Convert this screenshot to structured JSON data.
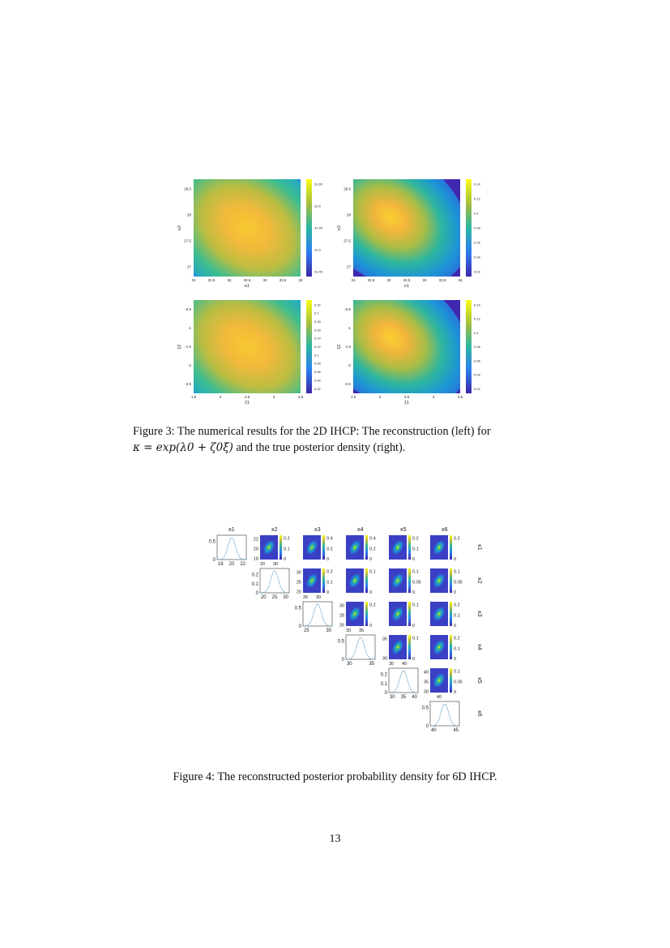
{
  "figure3": {
    "caption_prefix": "Figure 3:",
    "caption_line1_text": "The numerical results for the 2D IHCP: The reconstruction (left) for",
    "caption_line2_math": "κ = exp(λ0 + ζ0ξ)",
    "caption_line2_text": " and the true posterior density (right).",
    "panels": [
      {
        "xticks": [
          "31",
          "31.5",
          "32",
          "32.5",
          "33",
          "33.5",
          "34"
        ],
        "yticks": [
          "28.5",
          "28",
          "27.5",
          "27"
        ],
        "xlabel": "κ1",
        "ylabel": "κ2",
        "cbar_ticks": [
          "31.65",
          "31.6",
          "31.55",
          "31.5",
          "31.45"
        ]
      },
      {
        "xticks": [
          "31",
          "31.5",
          "32",
          "32.5",
          "33",
          "33.5",
          "34"
        ],
        "yticks": [
          "28.5",
          "28",
          "27.5",
          "27"
        ],
        "xlabel": "κ1",
        "ylabel": "κ2",
        "cbar_ticks": [
          "0.14",
          "0.12",
          "0.1",
          "0.08",
          "0.06",
          "0.04",
          "0.02"
        ]
      },
      {
        "xticks": [
          "1.5",
          "2",
          "2.5",
          "3",
          "3.5"
        ],
        "yticks": [
          "-0.5",
          "-1",
          "-1.5",
          "-2",
          "-2.5"
        ],
        "xlabel": "ξ1",
        "ylabel": "ξ2",
        "cbar_ticks": [
          "0.22",
          "0.2",
          "0.18",
          "0.16",
          "0.14",
          "0.12",
          "0.1",
          "0.08",
          "0.06",
          "0.04",
          "0.02"
        ]
      },
      {
        "xticks": [
          "1.5",
          "2",
          "2.5",
          "3",
          "3.5"
        ],
        "yticks": [
          "-0.5",
          "-1",
          "-1.5",
          "-2",
          "-2.5"
        ],
        "xlabel": "ξ1",
        "ylabel": "ξ2",
        "cbar_ticks": [
          "0.14",
          "0.12",
          "0.1",
          "0.08",
          "0.06",
          "0.04",
          "0.02"
        ]
      }
    ]
  },
  "figure4": {
    "caption": "Figure 4: The reconstructed posterior probability density for 6D IHCP.",
    "col_labels": [
      "κ1",
      "κ2",
      "κ3",
      "κ4",
      "κ5",
      "κ6"
    ],
    "row_labels": [
      "κ1",
      "κ2",
      "κ3",
      "κ4",
      "κ5",
      "κ6"
    ],
    "diagonal": [
      {
        "xticks": [
          "18",
          "20",
          "22"
        ],
        "yticks": [
          "0.5",
          "0"
        ]
      },
      {
        "xticks": [
          "20",
          "25",
          "30"
        ],
        "yticks": [
          "0.2",
          "0.1",
          "0"
        ]
      },
      {
        "xticks": [
          "25",
          "30"
        ],
        "yticks": [
          "0.5",
          "0"
        ]
      },
      {
        "xticks": [
          "30",
          "35"
        ],
        "yticks": [
          "0.5",
          "0"
        ]
      },
      {
        "xticks": [
          "30",
          "35",
          "40"
        ],
        "yticks": [
          "0.2",
          "0.1",
          "0"
        ]
      },
      {
        "xticks": [
          "40",
          "45"
        ],
        "yticks": [
          "0.5",
          "0"
        ]
      }
    ],
    "offdiag_cbars": [
      [
        "0.2",
        "0.1",
        "0"
      ],
      [
        "0.4",
        "0.2",
        "0"
      ],
      [
        "0.4",
        "0.2",
        "0"
      ],
      [
        "0.2",
        "0.1",
        "0"
      ],
      [
        "0.2",
        "0"
      ],
      [
        "0.2",
        "0.1",
        "0"
      ],
      [
        "0.1",
        "0"
      ],
      [
        "0.1",
        "0.05",
        "0"
      ],
      [
        "0.1",
        "0.05",
        "0"
      ],
      [
        "0.2",
        "0"
      ],
      [
        "0.1",
        "0"
      ],
      [
        "0.2",
        "0.1",
        "0"
      ],
      [
        "0.1",
        "0"
      ],
      [
        "0.2",
        "0.1",
        "0"
      ],
      [
        "0.1",
        "0.05",
        "0"
      ]
    ],
    "row_yticks": [
      [
        "22",
        "20",
        "18"
      ],
      [
        "30",
        "25",
        "20"
      ],
      [
        "30",
        "28",
        "26"
      ],
      [
        "35",
        "30"
      ],
      [
        "40",
        "35",
        "30"
      ]
    ],
    "col_xticks": [
      [
        "20",
        "30"
      ],
      [
        "26",
        "30"
      ],
      [
        "30",
        "35"
      ],
      [
        "30",
        "40"
      ],
      [
        "40"
      ]
    ]
  },
  "page_number": "13",
  "colors": {
    "viridis_low": "#3e26a8",
    "viridis_mid": "#2bb6a3",
    "viridis_high": "#f9fb15"
  }
}
